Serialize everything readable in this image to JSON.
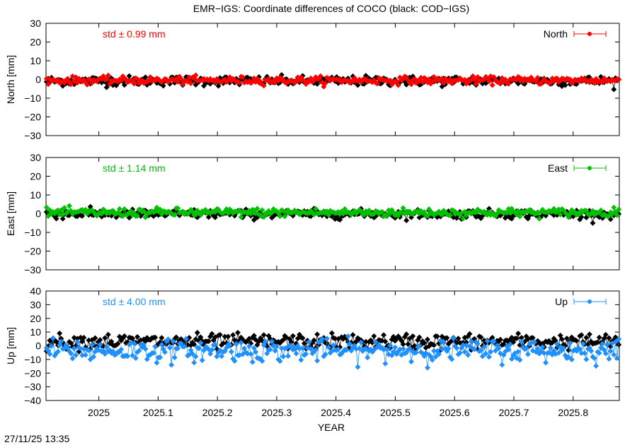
{
  "title": "EMR−IGS: Coordinate differences of COCO (black: COD−IGS)",
  "timestamp": "27/11/25 13:35",
  "chart_data": {
    "type": "line",
    "title": "EMR−IGS: Coordinate differences of COCO (black: COD−IGS)",
    "xlabel": "YEAR",
    "xlim": [
      2024.9109,
      2025.8779
    ],
    "x_ticks": [
      2025,
      2025.1,
      2025.2,
      2025.3,
      2025.4,
      2025.5,
      2025.6,
      2025.7,
      2025.8
    ],
    "x_tick_labels": [
      "2025",
      "2025.1",
      "2025.2",
      "2025.3",
      "2025.4",
      "2025.5",
      "2025.6",
      "2025.7",
      "2025.8"
    ],
    "n_days": 354,
    "panels": [
      {
        "key": "north",
        "ylabel": "North [mm]",
        "ylim": [
          -30,
          30
        ],
        "yticks": [
          30,
          20,
          10,
          0,
          -10,
          -20,
          -30
        ],
        "ytick_labels": [
          "30",
          "20",
          "10",
          "0",
          "−10",
          "−20",
          "−30"
        ],
        "std_text": "std ± 0.99 mm",
        "legend": "North",
        "color": "#ff0000",
        "series": [
          {
            "name": "EMR−IGS",
            "color": "#ff0000",
            "sd": 0.99,
            "mean": -0.5
          },
          {
            "name": "COD−IGS",
            "color": "#000000",
            "sd": 1.3,
            "mean": -0.8
          }
        ]
      },
      {
        "key": "east",
        "ylabel": "East [mm]",
        "ylim": [
          -30,
          30
        ],
        "yticks": [
          30,
          20,
          10,
          0,
          -10,
          -20,
          -30
        ],
        "ytick_labels": [
          "30",
          "20",
          "10",
          "0",
          "−10",
          "−20",
          "−30"
        ],
        "std_text": "std ± 1.14 mm",
        "legend": "East",
        "color": "#00c000",
        "series": [
          {
            "name": "EMR−IGS",
            "color": "#00c000",
            "sd": 1.14,
            "mean": 0.6
          },
          {
            "name": "COD−IGS",
            "color": "#000000",
            "sd": 1.2,
            "mean": -0.2
          }
        ]
      },
      {
        "key": "up",
        "ylabel": "Up [mm]",
        "ylim": [
          -40,
          40
        ],
        "yticks": [
          40,
          30,
          20,
          10,
          0,
          -10,
          -20,
          -30,
          -40
        ],
        "ytick_labels": [
          "40",
          "30",
          "20",
          "10",
          "0",
          "−10",
          "−20",
          "−30",
          "−40"
        ],
        "std_text": "std ± 4.00 mm",
        "legend": "Up",
        "color": "#1e90ff",
        "series": [
          {
            "name": "EMR−IGS",
            "color": "#1e90ff",
            "sd": 4.0,
            "mean": -3.5
          },
          {
            "name": "COD−IGS",
            "color": "#000000",
            "sd": 2.8,
            "mean": 3.0
          }
        ]
      }
    ]
  }
}
